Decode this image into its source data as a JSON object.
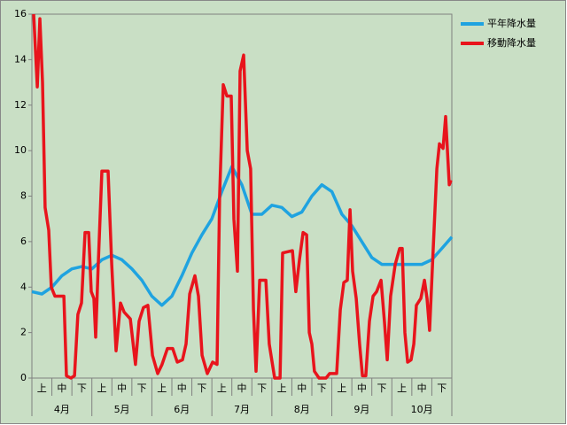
{
  "chart_data": {
    "type": "line",
    "categories": [
      "上",
      "中",
      "下",
      "上",
      "中",
      "下",
      "上",
      "中",
      "下",
      "上",
      "中",
      "下",
      "上",
      "中",
      "下",
      "上",
      "中",
      "下",
      "上",
      "中",
      "下"
    ],
    "groups": [
      "4月",
      "5月",
      "6月",
      "7月",
      "8月",
      "9月",
      "10月"
    ],
    "xlim": [
      0,
      21
    ],
    "ylim": [
      0,
      16
    ],
    "yticks": [
      0,
      2,
      4,
      6,
      8,
      10,
      12,
      14,
      16
    ],
    "grid": false,
    "legend": "right",
    "series": [
      {
        "name": "平年降水量",
        "color": "#1fa3e0",
        "x": [
          0,
          0.5,
          1,
          1.5,
          2,
          2.5,
          3,
          3.5,
          4,
          4.5,
          5,
          5.5,
          6,
          6.5,
          7,
          7.5,
          8,
          8.5,
          9,
          9.5,
          10,
          10.5,
          11,
          11.5,
          12,
          12.5,
          13,
          13.5,
          14,
          14.5,
          15,
          15.5,
          16,
          16.5,
          17,
          17.5,
          18,
          18.5,
          19,
          19.5,
          20,
          20.5,
          21
        ],
        "values": [
          3.8,
          3.7,
          4.0,
          4.5,
          4.8,
          4.9,
          4.8,
          5.2,
          5.4,
          5.2,
          4.8,
          4.3,
          3.6,
          3.2,
          3.6,
          4.5,
          5.5,
          6.3,
          7.0,
          8.2,
          9.3,
          8.5,
          7.2,
          7.2,
          7.6,
          7.5,
          7.1,
          7.3,
          8.0,
          8.5,
          8.2,
          7.2,
          6.7,
          6.0,
          5.3,
          5.0,
          5.0,
          5.0,
          5.0,
          5.0,
          5.2,
          5.7,
          6.2
        ]
      },
      {
        "name": "移動降水量",
        "color": "#e8141c",
        "x": [
          0.09,
          0.27,
          0.4,
          0.53,
          0.66,
          0.84,
          0.97,
          1.15,
          1.6,
          1.73,
          1.95,
          2.13,
          2.3,
          2.48,
          2.66,
          2.84,
          2.97,
          3.1,
          3.19,
          3.32,
          3.5,
          3.81,
          3.99,
          4.21,
          4.43,
          4.61,
          4.92,
          5.18,
          5.36,
          5.58,
          5.8,
          6.03,
          6.29,
          6.51,
          6.78,
          7.04,
          7.27,
          7.53,
          7.71,
          7.89,
          8.15,
          8.33,
          8.51,
          8.77,
          9.04,
          9.26,
          9.39,
          9.57,
          9.75,
          9.97,
          10.1,
          10.28,
          10.41,
          10.59,
          10.77,
          10.94,
          11.08,
          11.21,
          11.39,
          11.7,
          11.87,
          12.14,
          12.41,
          12.54,
          13.03,
          13.2,
          13.38,
          13.56,
          13.74,
          13.87,
          14,
          14.13,
          14.36,
          14.71,
          14.89,
          15.24,
          15.42,
          15.6,
          15.77,
          15.91,
          16.04,
          16.22,
          16.39,
          16.53,
          16.7,
          16.88,
          17.06,
          17.24,
          17.46,
          17.63,
          17.77,
          17.94,
          18.17,
          18.39,
          18.52,
          18.65,
          18.79,
          18.96,
          19.1,
          19.23,
          19.45,
          19.63,
          19.76,
          19.89,
          20.07,
          20.25,
          20.38,
          20.56,
          20.69,
          20.87,
          20.96
        ],
        "values": [
          16,
          12.8,
          15.8,
          13,
          7.5,
          6.5,
          4,
          3.6,
          3.6,
          0.1,
          0,
          0.1,
          2.8,
          3.3,
          6.4,
          6.4,
          3.8,
          3.5,
          1.8,
          5,
          9.1,
          9.1,
          5,
          1.2,
          3.3,
          2.9,
          2.6,
          0.6,
          2.5,
          3.1,
          3.2,
          1.0,
          0.2,
          0.6,
          1.3,
          1.3,
          0.7,
          0.8,
          1.5,
          3.7,
          4.5,
          3.6,
          1.0,
          0.2,
          0.7,
          0.6,
          8,
          12.9,
          12.4,
          12.4,
          7,
          4.7,
          13.5,
          14.2,
          10,
          9.2,
          3,
          0.3,
          4.3,
          4.3,
          1.5,
          0,
          0,
          5.5,
          5.6,
          3.8,
          5.2,
          6.4,
          6.3,
          2,
          1.5,
          0.3,
          0,
          0,
          0.2,
          0.2,
          3,
          4.2,
          4.3,
          7.4,
          4.7,
          3.5,
          1.5,
          0.1,
          0.1,
          2.5,
          3.6,
          3.8,
          4.3,
          2.5,
          0.8,
          3.6,
          5,
          5.7,
          5.7,
          2,
          0.7,
          0.8,
          1.5,
          3.2,
          3.5,
          4.3,
          3.5,
          2.1,
          5.7,
          9.2,
          10.3,
          10.1,
          11.5,
          8.5,
          8.7
        ]
      }
    ]
  }
}
